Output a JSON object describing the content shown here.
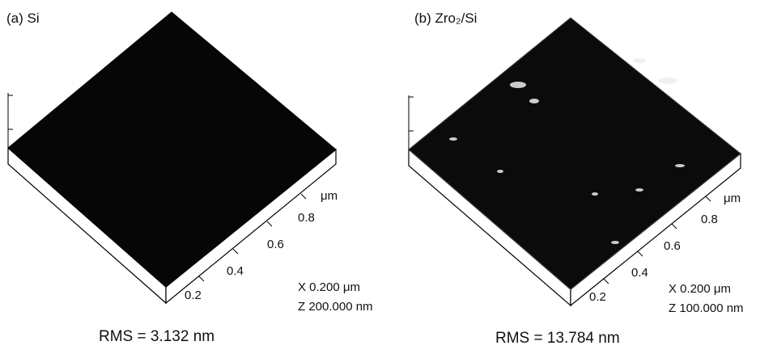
{
  "panels": [
    {
      "label": "(a) Si",
      "ticks": [
        "0.2",
        "0.4",
        "0.6",
        "0.8"
      ],
      "unit": "μm",
      "scale_x": "X 0.200 μm",
      "scale_z": "Z 200.000 nm",
      "rms": "RMS = 3.132 nm"
    },
    {
      "label": "(b) Zro₂/Si",
      "ticks": [
        "0.2",
        "0.4",
        "0.6",
        "0.8"
      ],
      "unit": "μm",
      "scale_x": "X 0.200 μm",
      "scale_z": "Z 100.000 nm",
      "rms": "RMS = 13.784 nm"
    }
  ]
}
